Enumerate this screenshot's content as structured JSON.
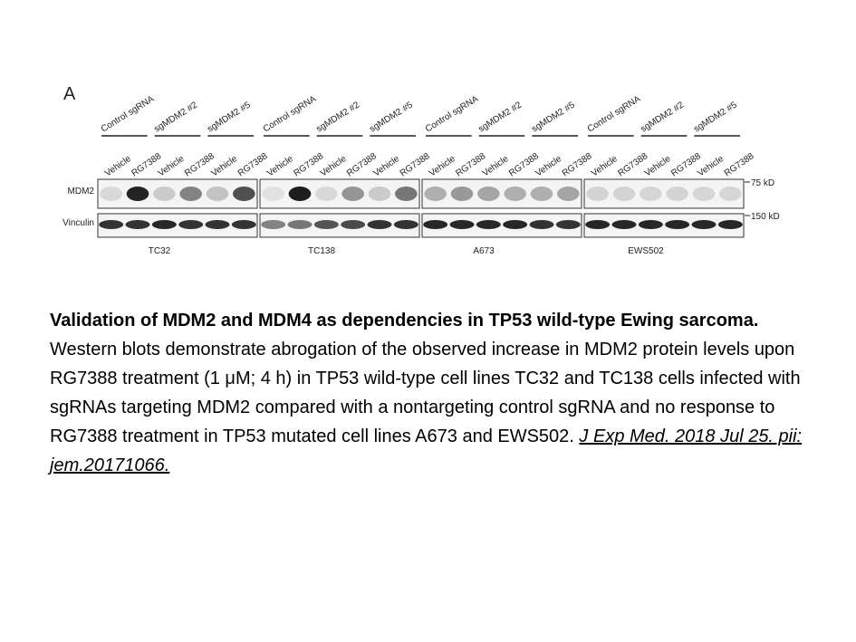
{
  "figure": {
    "panel": "A",
    "rows": [
      "MDM2",
      "Vinculin"
    ],
    "markers": [
      "75 kD",
      "150 kD"
    ],
    "blots": [
      {
        "cell_line": "TC32",
        "groups": [
          "Control sgRNA",
          "sgMDM2 #2",
          "sgMDM2 #5"
        ],
        "lanes": [
          "Vehicle",
          "RG7388",
          "Vehicle",
          "RG7388",
          "Vehicle",
          "RG7388"
        ]
      },
      {
        "cell_line": "TC138",
        "groups": [
          "Control sgRNA",
          "sgMDM2 #2",
          "sgMDM2 #5"
        ],
        "lanes": [
          "Vehicle",
          "RG7388",
          "Vehicle",
          "RG7388",
          "Vehicle",
          "RG7388"
        ]
      },
      {
        "cell_line": "A673",
        "groups": [
          "Control sgRNA",
          "sgMDM2 #2",
          "sgMDM2 #5"
        ],
        "lanes": [
          "Vehicle",
          "RG7388",
          "Vehicle",
          "RG7388",
          "Vehicle",
          "RG7388"
        ]
      },
      {
        "cell_line": "EWS502",
        "groups": [
          "Control sgRNA",
          "sgMDM2 #2",
          "sgMDM2 #5"
        ],
        "lanes": [
          "Vehicle",
          "RG7388",
          "Vehicle",
          "RG7388",
          "Vehicle",
          "RG7388"
        ]
      }
    ]
  },
  "caption": {
    "title": "Validation of MDM2 and MDM4 as dependencies in TP53 wild-type Ewing sarcoma.",
    "body": "Western blots demonstrate abrogation of the observed increase in MDM2 protein levels upon RG7388 treatment (1 μM; 4 h) in TP53 wild-type cell lines TC32 and TC138 cells infected with sgRNAs targeting MDM2 compared with a nontargeting control sgRNA and no response to RG7388 treatment in TP53 mutated cell lines A673 and EWS502.",
    "citation": "J Exp Med. 2018 Jul 25. pii: jem.20171066."
  }
}
